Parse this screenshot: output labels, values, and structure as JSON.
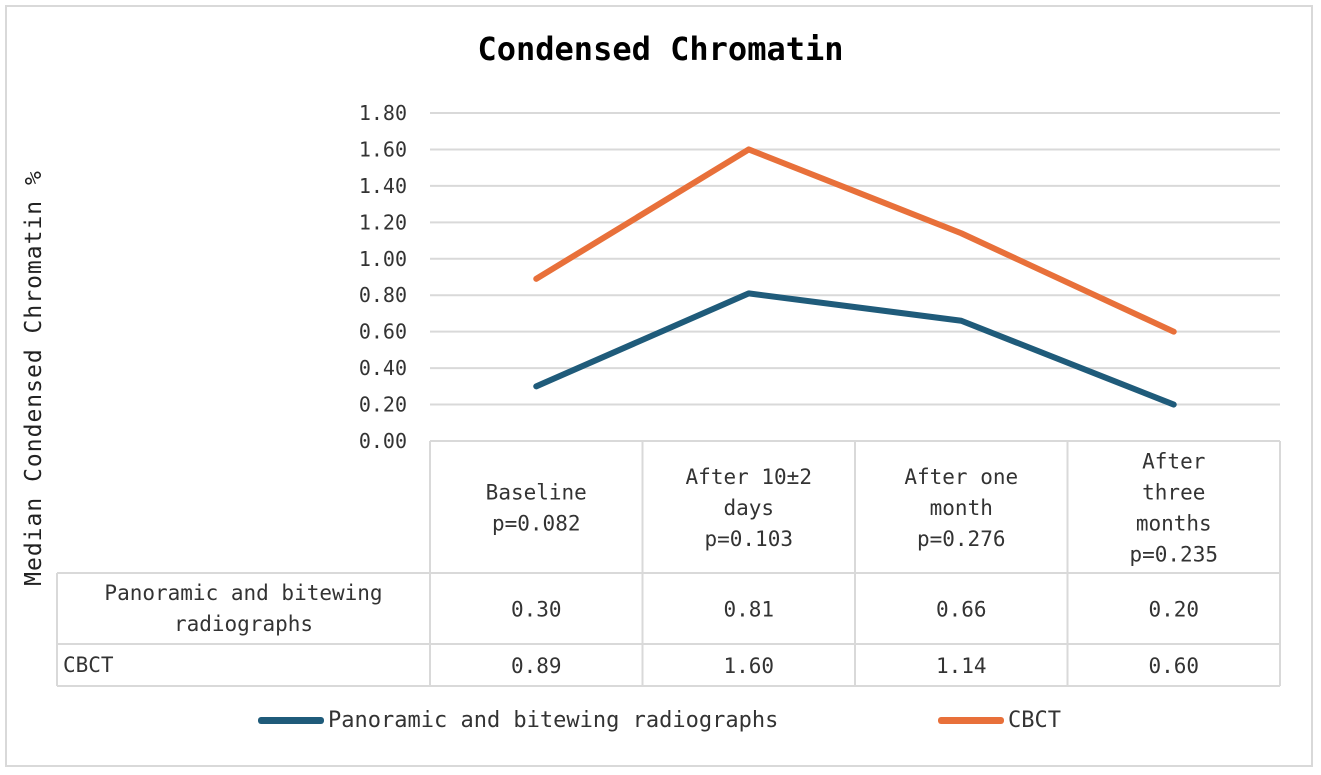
{
  "chart_data": {
    "type": "line",
    "title": "Condensed Chromatin",
    "ylabel": "Median Condensed Chromatin %",
    "xlabel": "",
    "ylim": [
      0,
      1.8
    ],
    "ytick_step": 0.2,
    "y_ticks": [
      "0.00",
      "0.20",
      "0.40",
      "0.60",
      "0.80",
      "1.00",
      "1.20",
      "1.40",
      "1.60",
      "1.80"
    ],
    "grid": true,
    "legend_position": "bottom",
    "categories": [
      [
        "Baseline",
        "p=0.082"
      ],
      [
        "After 10±2",
        "days",
        "p=0.103"
      ],
      [
        "After one",
        "month",
        "p=0.276"
      ],
      [
        "After",
        "three",
        "months",
        "p=0.235"
      ]
    ],
    "series": [
      {
        "name": "Panoramic and bitewing radiographs",
        "table_label": [
          "Panoramic and bitewing",
          "radiographs"
        ],
        "color": "#1f5b7a",
        "values": [
          0.3,
          0.81,
          0.66,
          0.2
        ],
        "labels": [
          "0.30",
          "0.81",
          "0.66",
          "0.20"
        ]
      },
      {
        "name": "CBCT",
        "table_label": [
          "CBCT"
        ],
        "color": "#e8703a",
        "values": [
          0.89,
          1.6,
          1.14,
          0.6
        ],
        "labels": [
          "0.89",
          "1.60",
          "1.14",
          "0.60"
        ]
      }
    ]
  }
}
